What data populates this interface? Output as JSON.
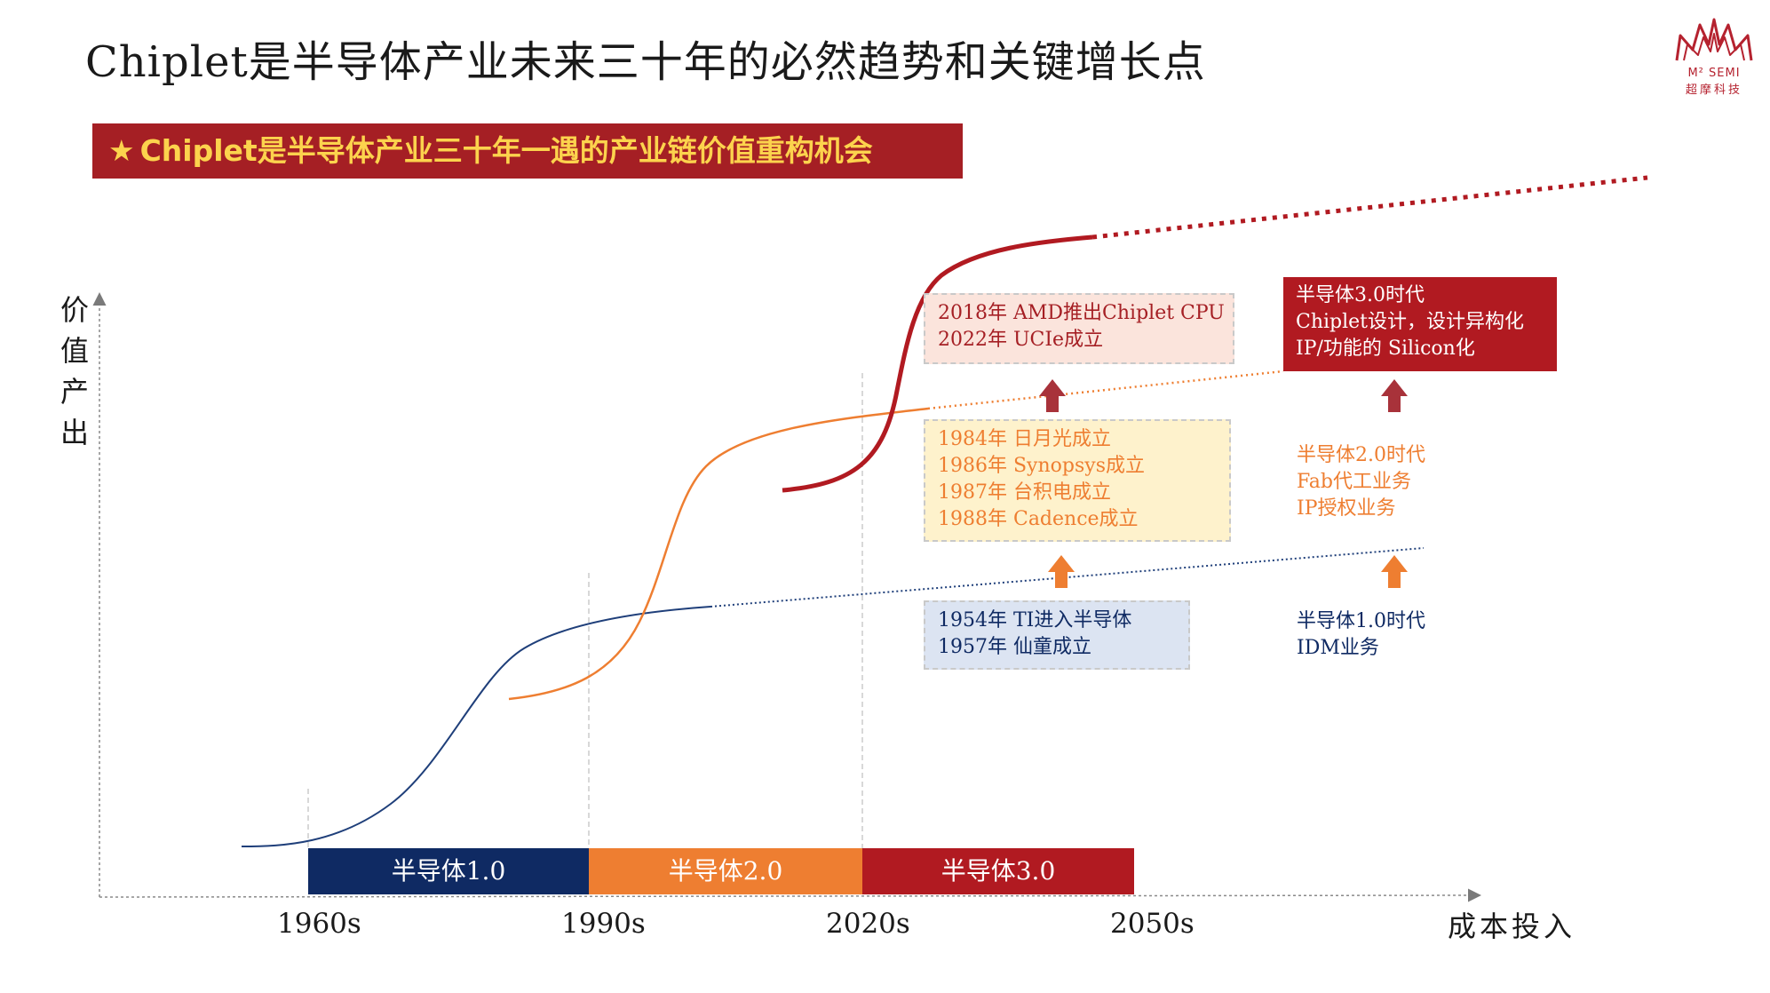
{
  "title": "Chiplet是半导体产业未来三十年的必然趋势和关键增长点",
  "logo": {
    "brand": "M² SEMI",
    "brand_cn": "超摩科技"
  },
  "banner": {
    "star": "★",
    "text": "Chiplet是半导体产业三十年一遇的产业链价值重构机会"
  },
  "axes": {
    "y_label": [
      "价",
      "值",
      "产",
      "出"
    ],
    "x_label": "成本投入"
  },
  "ticks": [
    "1960s",
    "1990s",
    "2020s",
    "2050s"
  ],
  "eras": [
    {
      "label": "半导体1.0",
      "color": "#0f2a63"
    },
    {
      "label": "半导体2.0",
      "color": "#ee7e31"
    },
    {
      "label": "半导体3.0",
      "color": "#b11a21"
    }
  ],
  "milestones": {
    "era3": [
      "2018年 AMD推出Chiplet CPU",
      "2022年 UCIe成立"
    ],
    "era2": [
      "1984年 日月光成立",
      "1986年 Synopsys成立",
      "1987年 台积电成立",
      "1988年 Cadence成立"
    ],
    "era1": [
      "1954年 TI进入半导体",
      "1957年 仙童成立"
    ]
  },
  "era_descriptions": {
    "era3": [
      "半导体3.0时代",
      "Chiplet设计，设计异构化",
      "IP/功能的 Silicon化"
    ],
    "era2": [
      "半导体2.0时代",
      "Fab代工业务",
      "IP授权业务"
    ],
    "era1": [
      "半导体1.0时代",
      "IDM业务"
    ]
  },
  "colors": {
    "era1": "#1f3f7a",
    "era2": "#ee7e31",
    "era3": "#b11a21",
    "banner_bg": "#a51f24",
    "banner_text": "#fcd34d"
  }
}
